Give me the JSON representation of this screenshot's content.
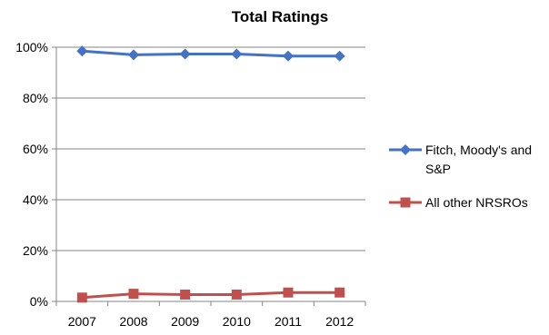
{
  "chart_data": {
    "type": "line",
    "title": "Total Ratings",
    "xlabel": "",
    "ylabel": "",
    "categories": [
      "2007",
      "2008",
      "2009",
      "2010",
      "2011",
      "2012"
    ],
    "y_ticks": [
      "0%",
      "20%",
      "40%",
      "60%",
      "80%",
      "100%"
    ],
    "ylim": [
      0,
      100
    ],
    "grid": "horizontal",
    "legend_position": "right",
    "series": [
      {
        "name": "Fitch, Moody's and S&P",
        "legend_lines": [
          "Fitch, Moody's and",
          "S&P"
        ],
        "values": [
          98.5,
          97.0,
          97.3,
          97.3,
          96.5,
          96.5
        ],
        "color": "#4472C4",
        "marker": "diamond"
      },
      {
        "name": "All other NRSROs",
        "legend_lines": [
          "All other NRSROs"
        ],
        "values": [
          1.5,
          3.0,
          2.7,
          2.7,
          3.5,
          3.5
        ],
        "color": "#C0504D",
        "marker": "square"
      }
    ]
  }
}
